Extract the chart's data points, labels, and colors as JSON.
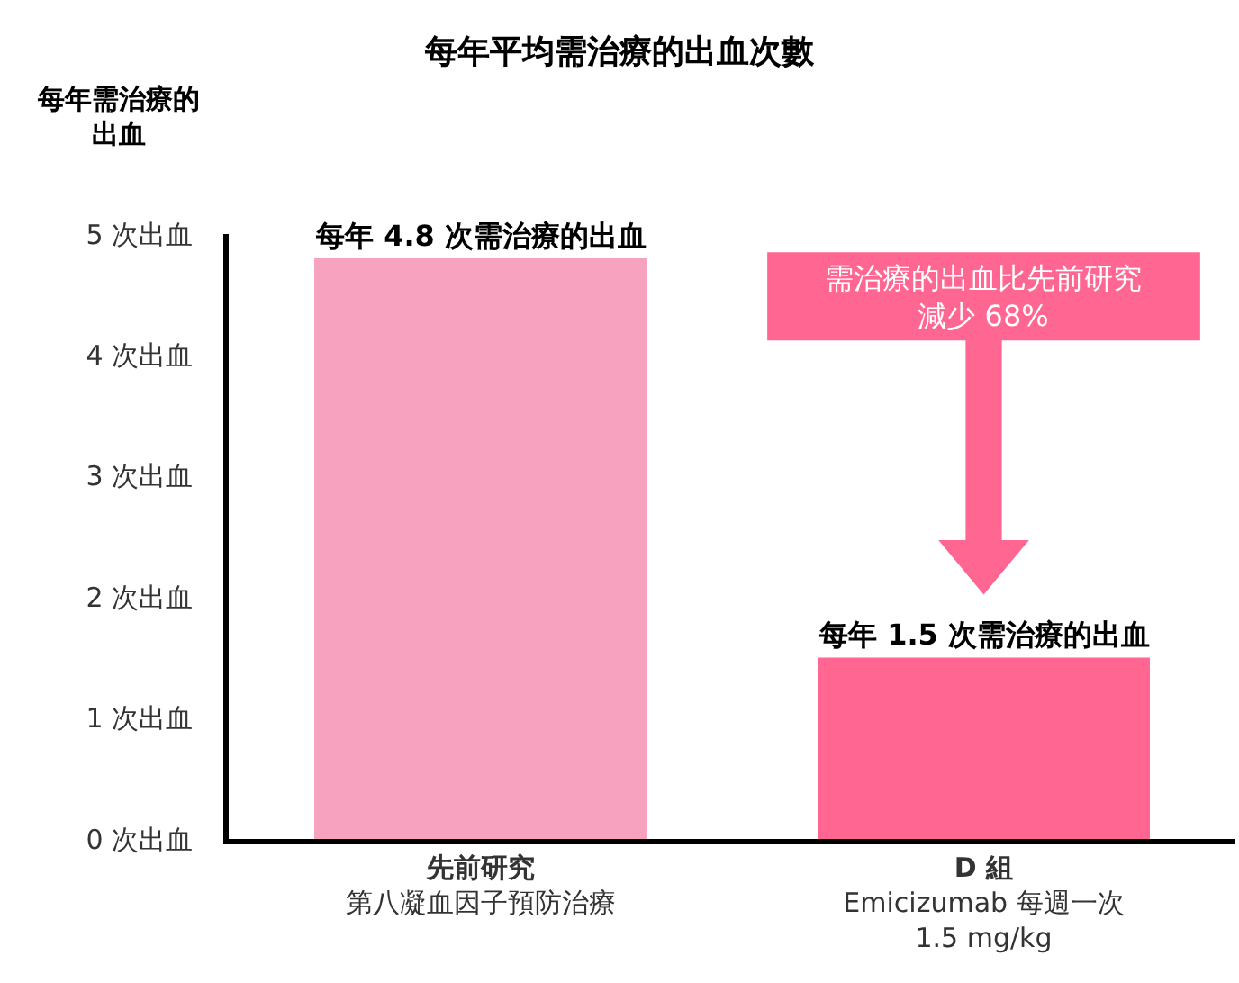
{
  "chart_data": {
    "type": "bar",
    "title": "每年平均需治療的出血次數",
    "ylabel": "每年需治療的出血",
    "categories": [
      "先前研究第八凝血因子預防治療",
      "D 組\nEmicizumab 每週一次\n1.5 mg/kg"
    ],
    "values": [
      4.8,
      1.5
    ],
    "colors": [
      "#f7a3c0",
      "#ff6692"
    ],
    "value_labels": [
      "每年 4.8 次需治療的出血",
      "每年 1.5 次需治療的出血"
    ],
    "ylim": [
      0,
      5
    ],
    "yticks": [
      {
        "value": 0,
        "label": "0 次出血"
      },
      {
        "value": 1,
        "label": "1 次出血"
      },
      {
        "value": 2,
        "label": "2 次出血"
      },
      {
        "value": 3,
        "label": "3 次出血"
      },
      {
        "value": 4,
        "label": "4 次出血"
      },
      {
        "value": 5,
        "label": "5 次出血"
      }
    ],
    "annotations": [
      "需治療的出血比先前研究減少 68%"
    ],
    "grid": false,
    "legend": false
  }
}
